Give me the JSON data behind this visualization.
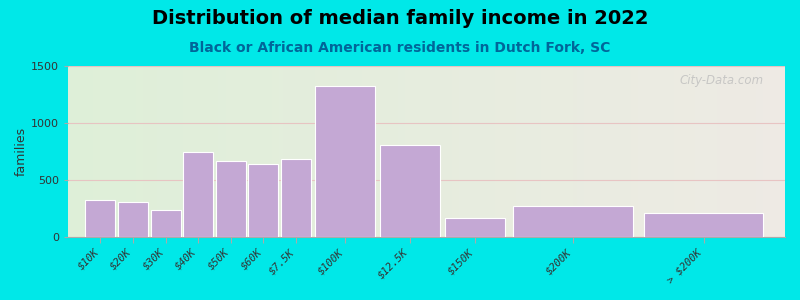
{
  "title": "Distribution of median family income in 2022",
  "subtitle": "Black or African American residents in Dutch Fork, SC",
  "categories": [
    "$10K",
    "$20K",
    "$30K",
    "$40K",
    "$50K",
    "$60K",
    "$7.5K",
    "$100K",
    "$12.5K",
    "$150K",
    "$200K",
    "> $200K"
  ],
  "values": [
    320,
    300,
    235,
    740,
    660,
    640,
    680,
    1320,
    800,
    160,
    270,
    210
  ],
  "bar_widths": [
    1,
    1,
    1,
    1,
    1,
    1,
    1,
    2,
    2,
    2,
    4,
    4
  ],
  "bar_lefts": [
    0,
    1,
    2,
    3,
    4,
    5,
    6,
    7,
    9,
    11,
    13,
    17
  ],
  "bar_color": "#c4a8d4",
  "background_outer": "#00e8e8",
  "background_inner_left": "#deefd8",
  "background_inner_right": "#eeeae4",
  "title_fontsize": 14,
  "subtitle_fontsize": 10,
  "ylabel": "families",
  "ylim": [
    0,
    1500
  ],
  "yticks": [
    0,
    500,
    1000,
    1500
  ],
  "watermark": "City-Data.com",
  "total_width": 21
}
